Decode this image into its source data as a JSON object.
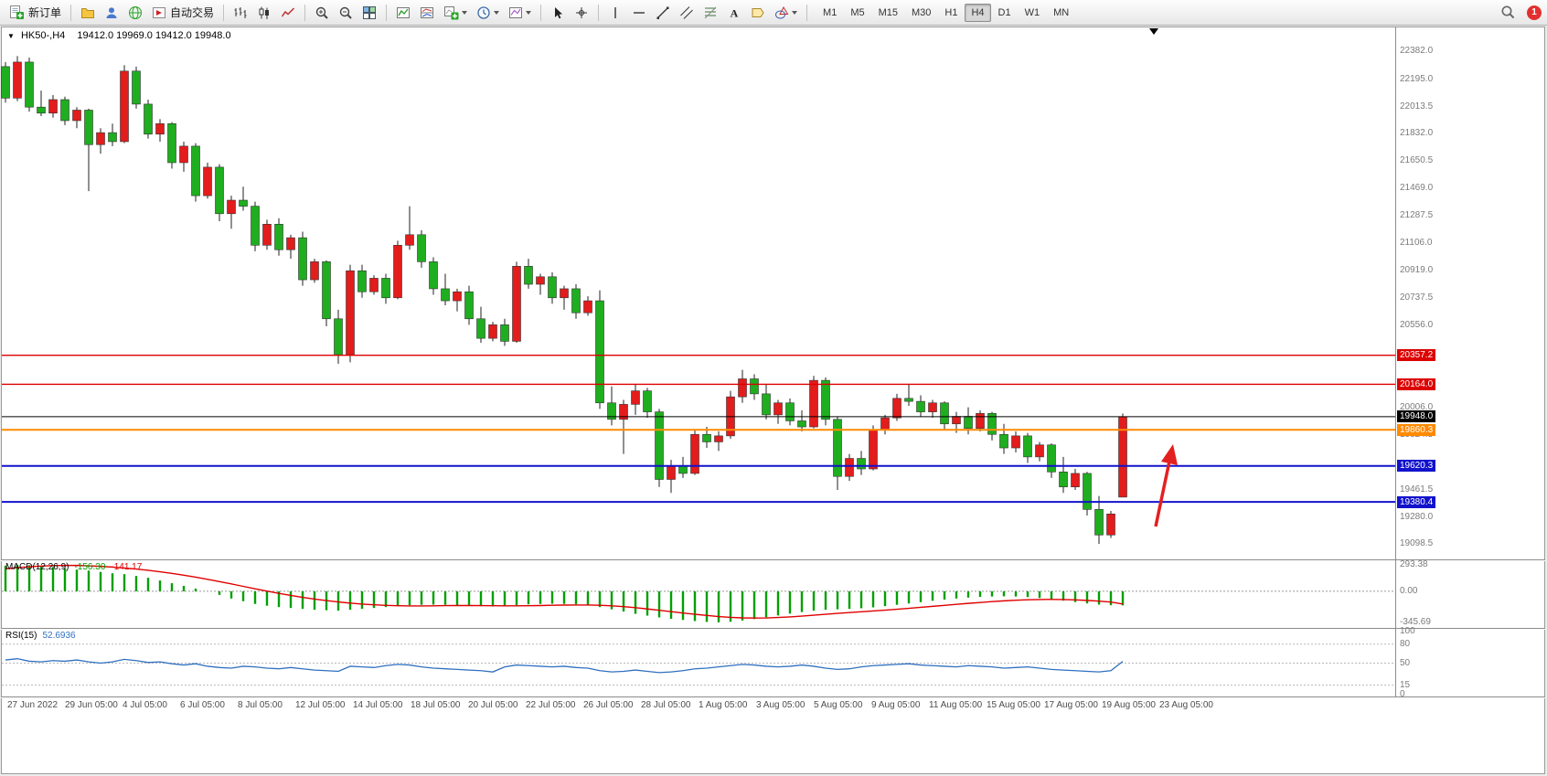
{
  "toolbar": {
    "new_order_label": "新订单",
    "autotrading_label": "自动交易",
    "timeframes": [
      "M1",
      "M5",
      "M15",
      "M30",
      "H1",
      "H4",
      "D1",
      "W1",
      "MN"
    ],
    "active_timeframe": "H4",
    "notification_count": "1",
    "icons": [
      "new-order-icon",
      "market-watch-icon",
      "profiles-icon",
      "data-window-icon",
      "autotrading-icon",
      "bar-chart-icon",
      "candlestick-chart-icon",
      "line-chart-icon",
      "zoom-in-icon",
      "zoom-out-icon",
      "tile-windows-icon",
      "indicators-icon",
      "indicator-windows-icon",
      "add-chart-icon",
      "periods-icon",
      "templates-icon",
      "cursor-icon",
      "crosshair-icon",
      "vertical-line-icon",
      "horizontal-line-icon",
      "trendline-icon",
      "equidistant-channel-icon",
      "fibonacci-icon",
      "text-icon",
      "text-label-icon",
      "shapes-icon",
      "search-icon"
    ]
  },
  "chart": {
    "title_symbol": "HK50-,H4",
    "title_ohlc": "19412.0 19969.0 19412.0 19948.0"
  },
  "chart_data": {
    "type": "candlestick",
    "symbol": "HK50-",
    "timeframe": "H4",
    "ohlc_display": {
      "open": "19412.0",
      "high": "19969.0",
      "low": "19412.0",
      "close": "19948.0"
    },
    "price_range": {
      "min": 19040,
      "max": 22480
    },
    "up_color": "#e31c1c",
    "down_color": "#1fae1f",
    "candles": [
      [
        22280,
        22310,
        22040,
        22070
      ],
      [
        22070,
        22350,
        22050,
        22310
      ],
      [
        22310,
        22340,
        21980,
        22010
      ],
      [
        22010,
        22120,
        21950,
        21970
      ],
      [
        21970,
        22090,
        21940,
        22060
      ],
      [
        22060,
        22080,
        21890,
        21920
      ],
      [
        21920,
        22010,
        21870,
        21990
      ],
      [
        21990,
        22000,
        21450,
        21760
      ],
      [
        21760,
        21870,
        21700,
        21840
      ],
      [
        21840,
        21900,
        21750,
        21780
      ],
      [
        21780,
        22290,
        21770,
        22250
      ],
      [
        22250,
        22280,
        22000,
        22030
      ],
      [
        22030,
        22060,
        21800,
        21830
      ],
      [
        21830,
        21930,
        21780,
        21900
      ],
      [
        21900,
        21910,
        21600,
        21640
      ],
      [
        21640,
        21780,
        21580,
        21750
      ],
      [
        21750,
        21770,
        21380,
        21420
      ],
      [
        21420,
        21640,
        21400,
        21610
      ],
      [
        21610,
        21630,
        21250,
        21300
      ],
      [
        21300,
        21420,
        21200,
        21390
      ],
      [
        21390,
        21480,
        21320,
        21350
      ],
      [
        21350,
        21380,
        21050,
        21090
      ],
      [
        21090,
        21260,
        21060,
        21230
      ],
      [
        21230,
        21270,
        21020,
        21060
      ],
      [
        21060,
        21160,
        21000,
        21140
      ],
      [
        21140,
        21180,
        20820,
        20860
      ],
      [
        20860,
        21000,
        20840,
        20980
      ],
      [
        20980,
        20990,
        20550,
        20600
      ],
      [
        20600,
        20660,
        20300,
        20360
      ],
      [
        20360,
        20960,
        20310,
        20920
      ],
      [
        20920,
        20960,
        20740,
        20780
      ],
      [
        20780,
        20890,
        20760,
        20870
      ],
      [
        20870,
        20900,
        20700,
        20740
      ],
      [
        20740,
        21120,
        20730,
        21090
      ],
      [
        21090,
        21350,
        21060,
        21160
      ],
      [
        21160,
        21190,
        20940,
        20980
      ],
      [
        20980,
        21010,
        20760,
        20800
      ],
      [
        20800,
        20900,
        20690,
        20720
      ],
      [
        20720,
        20800,
        20650,
        20780
      ],
      [
        20780,
        20820,
        20560,
        20600
      ],
      [
        20600,
        20680,
        20440,
        20470
      ],
      [
        20470,
        20580,
        20450,
        20560
      ],
      [
        20560,
        20600,
        20420,
        20450
      ],
      [
        20450,
        20980,
        20440,
        20950
      ],
      [
        20950,
        21000,
        20800,
        20830
      ],
      [
        20830,
        20900,
        20760,
        20880
      ],
      [
        20880,
        20910,
        20700,
        20740
      ],
      [
        20740,
        20820,
        20660,
        20800
      ],
      [
        20800,
        20830,
        20600,
        20640
      ],
      [
        20640,
        20750,
        20620,
        20720
      ],
      [
        20720,
        20790,
        20000,
        20040
      ],
      [
        20040,
        20150,
        19890,
        19930
      ],
      [
        19930,
        20060,
        19700,
        20030
      ],
      [
        20030,
        20160,
        19960,
        20120
      ],
      [
        20120,
        20140,
        19940,
        19980
      ],
      [
        19980,
        20000,
        19480,
        19530
      ],
      [
        19530,
        19660,
        19440,
        19620
      ],
      [
        19620,
        19680,
        19540,
        19570
      ],
      [
        19570,
        19860,
        19560,
        19830
      ],
      [
        19830,
        19880,
        19740,
        19780
      ],
      [
        19780,
        19850,
        19720,
        19820
      ],
      [
        19820,
        20120,
        19800,
        20080
      ],
      [
        20080,
        20260,
        20040,
        20200
      ],
      [
        20200,
        20230,
        20060,
        20100
      ],
      [
        20100,
        20160,
        19930,
        19960
      ],
      [
        19960,
        20060,
        19900,
        20040
      ],
      [
        20040,
        20070,
        19890,
        19920
      ],
      [
        19920,
        19990,
        19850,
        19880
      ],
      [
        19880,
        20220,
        19870,
        20190
      ],
      [
        20190,
        20210,
        19890,
        19930
      ],
      [
        19930,
        19950,
        19460,
        19550
      ],
      [
        19550,
        19700,
        19520,
        19670
      ],
      [
        19670,
        19720,
        19560,
        19600
      ],
      [
        19600,
        19890,
        19590,
        19860
      ],
      [
        19860,
        19960,
        19830,
        19940
      ],
      [
        19940,
        20100,
        19920,
        20070
      ],
      [
        20070,
        20160,
        20020,
        20050
      ],
      [
        20050,
        20090,
        19950,
        19980
      ],
      [
        19980,
        20060,
        19940,
        20040
      ],
      [
        20040,
        20050,
        19860,
        19900
      ],
      [
        19900,
        19980,
        19840,
        19950
      ],
      [
        19950,
        20010,
        19830,
        19870
      ],
      [
        19870,
        19990,
        19850,
        19970
      ],
      [
        19970,
        19980,
        19790,
        19830
      ],
      [
        19830,
        19900,
        19700,
        19740
      ],
      [
        19740,
        19850,
        19710,
        19820
      ],
      [
        19820,
        19840,
        19640,
        19680
      ],
      [
        19680,
        19780,
        19650,
        19760
      ],
      [
        19760,
        19770,
        19540,
        19580
      ],
      [
        19580,
        19680,
        19440,
        19480
      ],
      [
        19480,
        19600,
        19460,
        19570
      ],
      [
        19570,
        19580,
        19290,
        19330
      ],
      [
        19330,
        19420,
        19100,
        19160
      ],
      [
        19160,
        19320,
        19140,
        19300
      ],
      [
        19412,
        19969,
        19412,
        19948
      ]
    ],
    "time_labels": [
      "27 Jun 2022",
      "29 Jun 05:00",
      "4 Jul 05:00",
      "6 Jul 05:00",
      "8 Jul 05:00",
      "12 Jul 05:00",
      "14 Jul 05:00",
      "18 Jul 05:00",
      "20 Jul 05:00",
      "22 Jul 05:00",
      "26 Jul 05:00",
      "28 Jul 05:00",
      "1 Aug 05:00",
      "3 Aug 05:00",
      "5 Aug 05:00",
      "9 Aug 05:00",
      "11 Aug 05:00",
      "15 Aug 05:00",
      "17 Aug 05:00",
      "19 Aug 05:00",
      "23 Aug 05:00"
    ],
    "price_axis_labels": [
      "22382.0",
      "22195.0",
      "22013.5",
      "21832.0",
      "21650.5",
      "21469.0",
      "21287.5",
      "21106.0",
      "20919.0",
      "20737.5",
      "20556.0",
      "20006.0",
      "19824.5",
      "19461.5",
      "19280.0",
      "19098.5"
    ],
    "hlines": [
      {
        "value": 20357.2,
        "label": "20357.2",
        "color": "#dd0000",
        "width": 1.4
      },
      {
        "value": 20164.0,
        "label": "20164.0",
        "color": "#dd0000",
        "width": 1.4
      },
      {
        "value": 19948.0,
        "label": "19948.0",
        "color": "#000000",
        "width": 1.1
      },
      {
        "value": 19860.3,
        "label": "19860.3",
        "color": "#ff8a00",
        "width": 2
      },
      {
        "value": 19620.3,
        "label": "19620.3",
        "color": "#1212cc",
        "width": 2
      },
      {
        "value": 19380.4,
        "label": "19380.4",
        "color": "#1212cc",
        "width": 2
      }
    ],
    "annotation_arrow": {
      "color": "#e32020"
    },
    "indicators": [
      {
        "name": "MACD",
        "label": "MACD(12,26,9)",
        "values_text": [
          "-156.30",
          "-141.17"
        ],
        "axis_labels": [
          "293.38",
          "0.00",
          "-345.69"
        ],
        "range": {
          "min": -345.69,
          "max": 293.38
        },
        "hist_color": "#00a000",
        "signal_color": "#e00000",
        "histogram": [
          285,
          292,
          290,
          280,
          270,
          255,
          240,
          230,
          215,
          200,
          190,
          170,
          150,
          120,
          90,
          60,
          30,
          0,
          -40,
          -80,
          -110,
          -140,
          -160,
          -175,
          -185,
          -195,
          -205,
          -210,
          -215,
          -205,
          -195,
          -185,
          -175,
          -165,
          -155,
          -150,
          -148,
          -150,
          -155,
          -160,
          -165,
          -168,
          -165,
          -155,
          -145,
          -140,
          -138,
          -140,
          -145,
          -155,
          -175,
          -200,
          -225,
          -250,
          -270,
          -290,
          -305,
          -318,
          -330,
          -340,
          -345,
          -338,
          -325,
          -308,
          -288,
          -268,
          -248,
          -230,
          -215,
          -205,
          -200,
          -195,
          -188,
          -178,
          -165,
          -150,
          -135,
          -120,
          -105,
          -92,
          -80,
          -70,
          -62,
          -58,
          -56,
          -58,
          -64,
          -74,
          -88,
          -104,
          -120,
          -135,
          -148,
          -155,
          -156.3
        ],
        "signal": [
          250,
          262,
          272,
          280,
          285,
          288,
          287,
          283,
          277,
          269,
          259,
          247,
          233,
          217,
          199,
          179,
          157,
          133,
          108,
          82,
          55,
          28,
          2,
          -23,
          -46,
          -67,
          -86,
          -103,
          -118,
          -131,
          -142,
          -150,
          -156,
          -160,
          -162,
          -162,
          -161,
          -159,
          -158,
          -158,
          -159,
          -160,
          -161,
          -161,
          -160,
          -158,
          -155,
          -153,
          -152,
          -152,
          -155,
          -161,
          -170,
          -182,
          -196,
          -211,
          -226,
          -241,
          -255,
          -268,
          -280,
          -289,
          -295,
          -297,
          -296,
          -291,
          -284,
          -275,
          -265,
          -255,
          -245,
          -236,
          -227,
          -218,
          -209,
          -199,
          -189,
          -178,
          -167,
          -156,
          -145,
          -134,
          -124,
          -114,
          -106,
          -99,
          -94,
          -91,
          -90,
          -91,
          -95,
          -101,
          -109,
          -119,
          -141.2
        ]
      },
      {
        "name": "RSI",
        "label": "RSI(15)",
        "value_text": "52.6936",
        "levels": [
          80,
          50,
          15
        ],
        "axis_labels": [
          "100",
          "80",
          "50",
          "15",
          "0"
        ],
        "range": {
          "min": 0,
          "max": 100
        },
        "line_color": "#3070c0",
        "values": [
          55,
          57,
          53,
          52,
          54,
          53,
          55,
          52,
          50,
          52,
          56,
          54,
          51,
          52,
          49,
          47,
          49,
          45,
          43,
          42,
          45,
          44,
          42,
          41,
          43,
          41,
          39,
          38,
          37,
          45,
          44,
          43,
          46,
          48,
          47,
          44,
          42,
          41,
          40,
          39,
          38,
          36,
          44,
          47,
          46,
          45,
          44,
          45,
          43,
          42,
          38,
          36,
          37,
          39,
          37,
          35,
          36,
          38,
          41,
          42,
          44,
          46,
          48,
          47,
          45,
          44,
          45,
          47,
          45,
          42,
          40,
          41,
          44,
          46,
          47,
          48,
          49,
          47,
          46,
          45,
          44,
          46,
          45,
          44,
          42,
          43,
          44,
          42,
          40,
          39,
          38,
          37,
          36,
          38,
          52.69
        ]
      }
    ]
  }
}
